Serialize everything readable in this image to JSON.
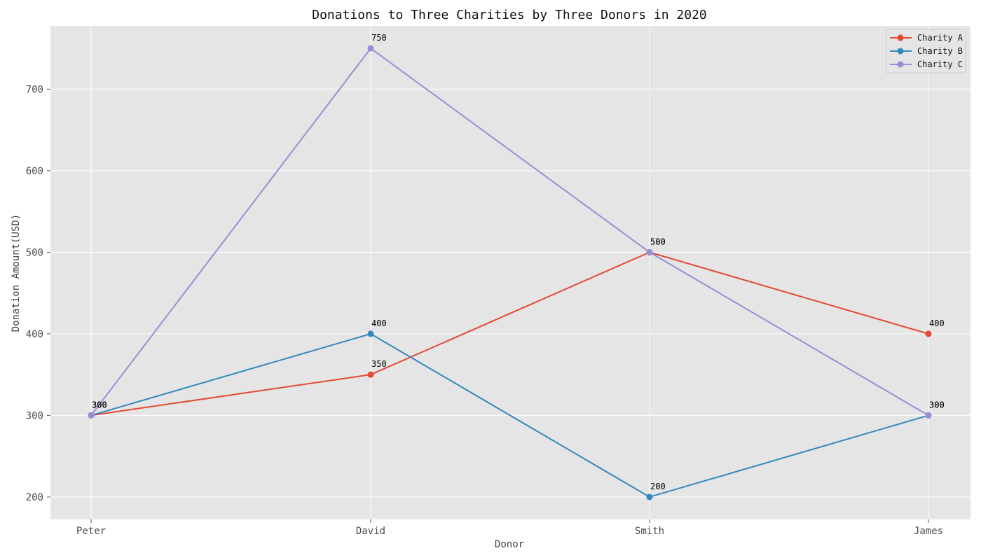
{
  "chart_data": {
    "type": "line",
    "title": "Donations to Three Charities by Three Donors in 2020",
    "xlabel": "Donor",
    "ylabel": "Donation Amount(USD)",
    "categories": [
      "Peter",
      "David",
      "Smith",
      "James"
    ],
    "ylim": [
      172.5,
      777.5
    ],
    "yticks": [
      200,
      300,
      400,
      500,
      600,
      700
    ],
    "grid": true,
    "legend_position": "top-right",
    "series": [
      {
        "name": "Charity A",
        "color": "#E24A33",
        "values": [
          300,
          350,
          500,
          400
        ]
      },
      {
        "name": "Charity B",
        "color": "#348ABD",
        "values": [
          300,
          400,
          200,
          300
        ]
      },
      {
        "name": "Charity C",
        "color": "#988ED5",
        "values": [
          300,
          750,
          500,
          300
        ]
      }
    ]
  }
}
